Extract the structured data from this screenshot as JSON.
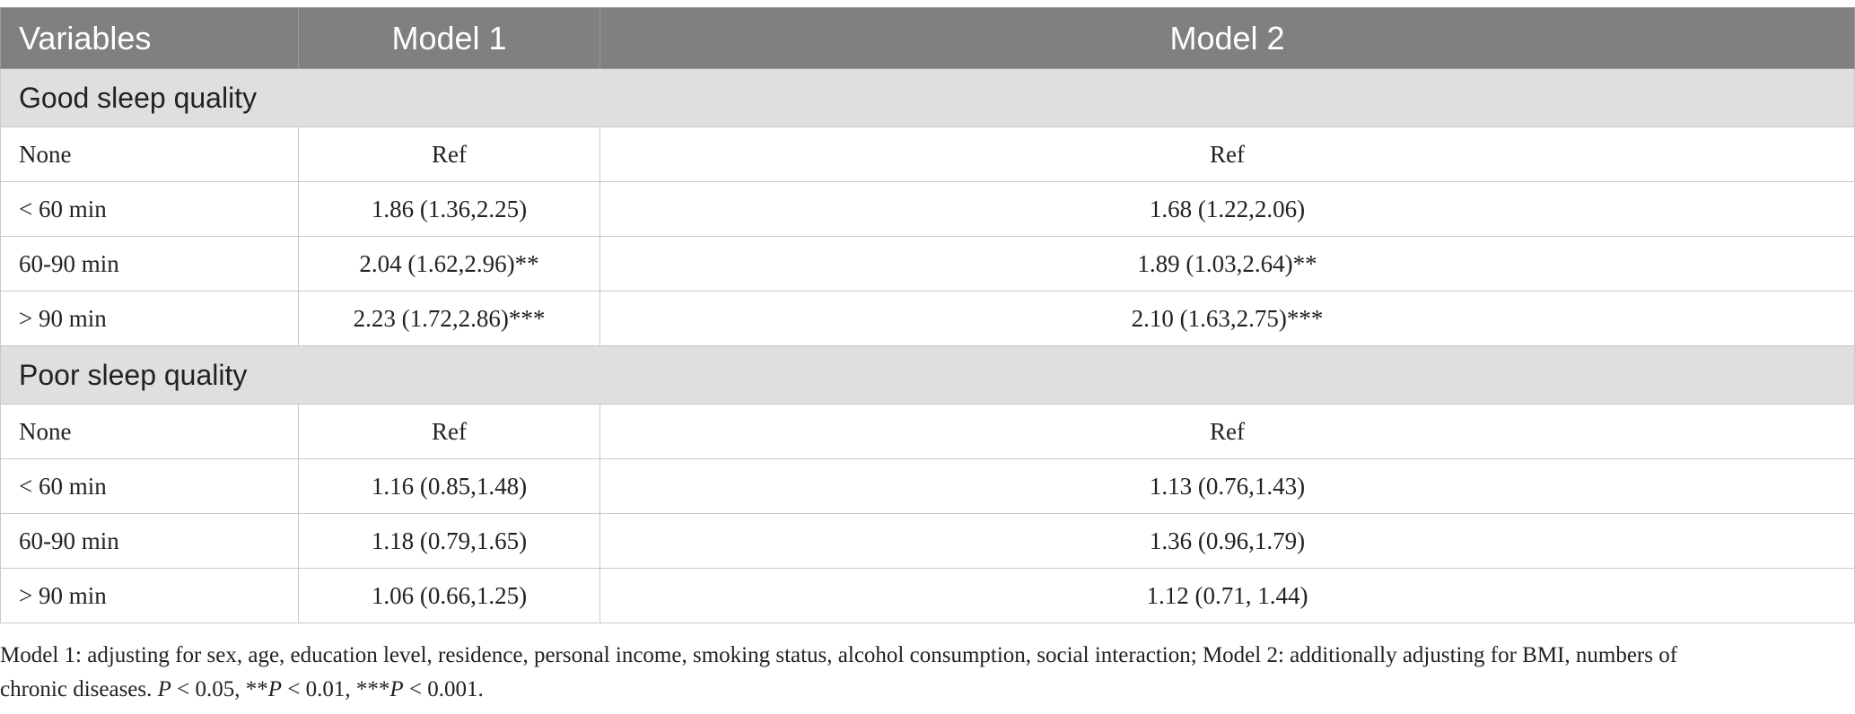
{
  "table": {
    "headers": [
      "Variables",
      "Model 1",
      "Model 2"
    ],
    "sections": [
      {
        "title": "Good sleep quality",
        "rows": [
          {
            "variable": "None",
            "model1": "Ref",
            "model2": "Ref"
          },
          {
            "variable": "< 60 min",
            "model1": "1.86 (1.36,2.25)",
            "model2": "1.68 (1.22,2.06)"
          },
          {
            "variable": "60-90 min",
            "model1": "2.04 (1.62,2.96)**",
            "model2": "1.89 (1.03,2.64)**"
          },
          {
            "variable": "> 90 min",
            "model1": "2.23 (1.72,2.86)***",
            "model2": "2.10 (1.63,2.75)***"
          }
        ]
      },
      {
        "title": "Poor sleep quality",
        "rows": [
          {
            "variable": "None",
            "model1": "Ref",
            "model2": "Ref"
          },
          {
            "variable": "< 60 min",
            "model1": "1.16 (0.85,1.48)",
            "model2": "1.13 (0.76,1.43)"
          },
          {
            "variable": "60-90 min",
            "model1": "1.18 (0.79,1.65)",
            "model2": "1.36 (0.96,1.79)"
          },
          {
            "variable": "> 90 min",
            "model1": "1.06 (0.66,1.25)",
            "model2": "1.12 (0.71, 1.44)"
          }
        ]
      }
    ]
  },
  "footnote": {
    "line1": "Model 1: adjusting for sex, age, education level, residence, personal income, smoking status, alcohol consumption, social interaction; Model 2: additionally adjusting for BMI, numbers of",
    "line2_a": "chronic diseases. ",
    "p1": "P",
    "line2_b": " < 0.05, **",
    "p2": "P",
    "line2_c": " < 0.01, ***",
    "p3": "P",
    "line2_d": " < 0.001."
  },
  "colors": {
    "header_bg": "#808080",
    "section_bg": "#e0dfe0",
    "border": "#c9c9c9"
  }
}
